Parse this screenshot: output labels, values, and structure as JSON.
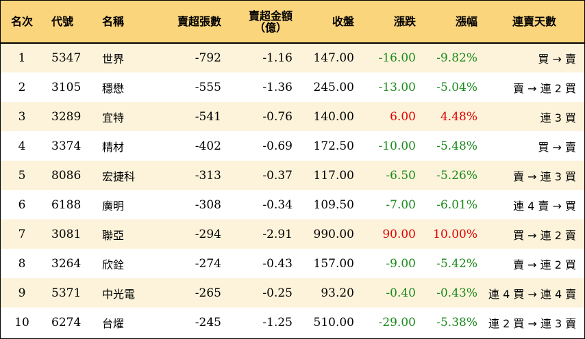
{
  "headers": {
    "rank": "名次",
    "code": "代號",
    "name": "名稱",
    "net_lots": "賣超張數",
    "net_amount_line1": "賣超金額",
    "net_amount_line2": "（億）",
    "close": "收盤",
    "change": "漲跌",
    "change_pct": "漲幅",
    "streak": "連賣天數"
  },
  "colors": {
    "header_bg": "#fbd57c",
    "odd_row_bg": "#fdf3da",
    "down": "#1a8a1a",
    "up": "#e00000"
  },
  "rows": [
    {
      "rank": "1",
      "code": "5347",
      "name": "世界",
      "net_lots": "-792",
      "net_amount": "-1.16",
      "close": "147.00",
      "change": "-16.00",
      "change_pct": "-9.82%",
      "streak": "買 → 賣",
      "dir": "down"
    },
    {
      "rank": "2",
      "code": "3105",
      "name": "穩懋",
      "net_lots": "-555",
      "net_amount": "-1.36",
      "close": "245.00",
      "change": "-13.00",
      "change_pct": "-5.04%",
      "streak": "賣 → 連 2 買",
      "dir": "down"
    },
    {
      "rank": "3",
      "code": "3289",
      "name": "宜特",
      "net_lots": "-541",
      "net_amount": "-0.76",
      "close": "140.00",
      "change": "6.00",
      "change_pct": "4.48%",
      "streak": "連 3 買",
      "dir": "up"
    },
    {
      "rank": "4",
      "code": "3374",
      "name": "精材",
      "net_lots": "-402",
      "net_amount": "-0.69",
      "close": "172.50",
      "change": "-10.00",
      "change_pct": "-5.48%",
      "streak": "買 → 賣",
      "dir": "down"
    },
    {
      "rank": "5",
      "code": "8086",
      "name": "宏捷科",
      "net_lots": "-313",
      "net_amount": "-0.37",
      "close": "117.00",
      "change": "-6.50",
      "change_pct": "-5.26%",
      "streak": "賣 → 連 3 買",
      "dir": "down"
    },
    {
      "rank": "6",
      "code": "6188",
      "name": "廣明",
      "net_lots": "-308",
      "net_amount": "-0.34",
      "close": "109.50",
      "change": "-7.00",
      "change_pct": "-6.01%",
      "streak": "連 4 賣 → 買",
      "dir": "down"
    },
    {
      "rank": "7",
      "code": "3081",
      "name": "聯亞",
      "net_lots": "-294",
      "net_amount": "-2.91",
      "close": "990.00",
      "change": "90.00",
      "change_pct": "10.00%",
      "streak": "買 → 連 2 賣",
      "dir": "up"
    },
    {
      "rank": "8",
      "code": "3264",
      "name": "欣銓",
      "net_lots": "-274",
      "net_amount": "-0.43",
      "close": "157.00",
      "change": "-9.00",
      "change_pct": "-5.42%",
      "streak": "賣 → 連 2 買",
      "dir": "down"
    },
    {
      "rank": "9",
      "code": "5371",
      "name": "中光電",
      "net_lots": "-265",
      "net_amount": "-0.25",
      "close": "93.20",
      "change": "-0.40",
      "change_pct": "-0.43%",
      "streak": "連 4 買 → 連 4 賣",
      "dir": "down"
    },
    {
      "rank": "10",
      "code": "6274",
      "name": "台燿",
      "net_lots": "-245",
      "net_amount": "-1.25",
      "close": "510.00",
      "change": "-29.00",
      "change_pct": "-5.38%",
      "streak": "連 2 買 → 連 3 賣",
      "dir": "down"
    }
  ]
}
